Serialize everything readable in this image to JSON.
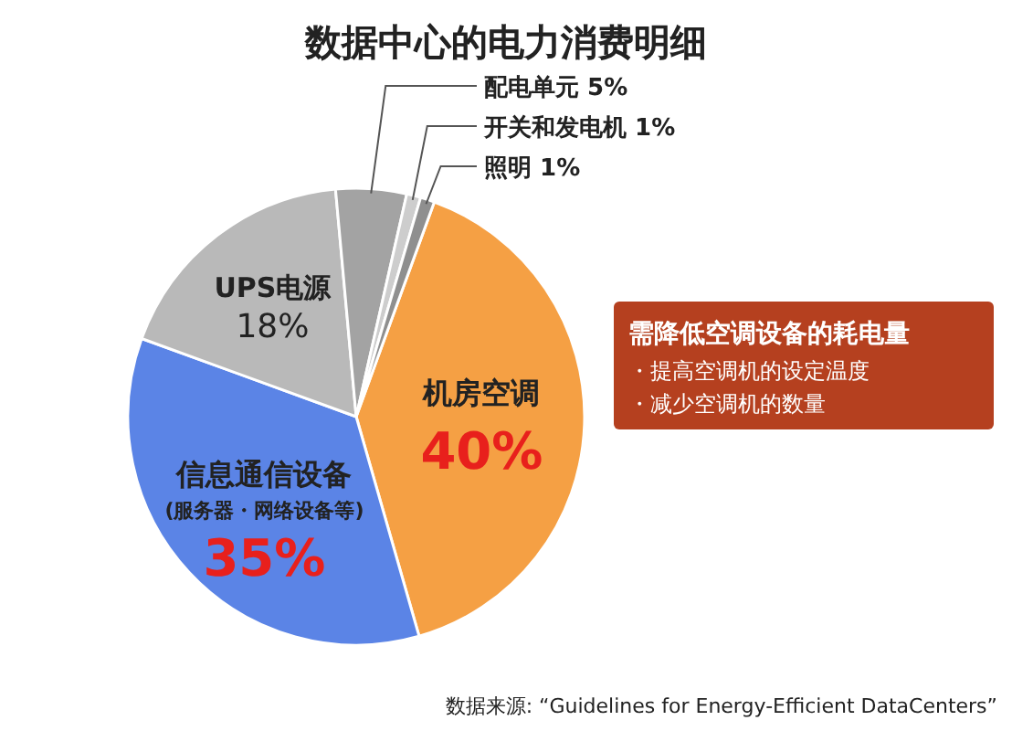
{
  "chart_data": {
    "type": "pie",
    "title": "数据中心的电力消费明细",
    "categories": [
      "机房空调",
      "信息通信设备",
      "UPS电源",
      "配电单元",
      "开关和发电机",
      "照明"
    ],
    "values": [
      40,
      35,
      18,
      5,
      1,
      1
    ],
    "colors": [
      "#f5a044",
      "#5b84e6",
      "#b9b9b9",
      "#a3a3a3",
      "#cdcdcd",
      "#8f8f8f"
    ],
    "value_labels": [
      "40%",
      "35%",
      "18%",
      "5%",
      "1%",
      "1%"
    ],
    "annotations": [
      "(服务器・网络设备等)",
      "需降低空调设备的耗电量",
      "・提高空调机的设定温度",
      "・减少空调机的数量",
      "数据来源: “Guidelines for Energy-Efficient DataCenters”"
    ]
  }
}
